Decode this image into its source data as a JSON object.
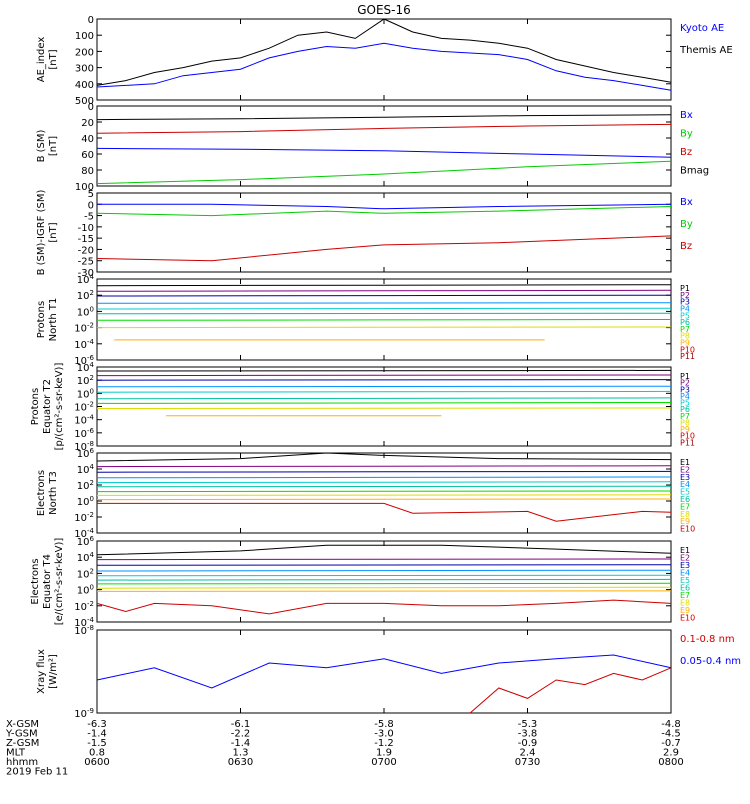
{
  "title": "GOES-16",
  "colors": {
    "black": "#000000",
    "blue": "#0000ff",
    "green": "#00cc00",
    "red": "#cc0000",
    "darkred": "#990000",
    "purple": "#800080",
    "navy": "#0000aa",
    "dodger": "#0090ff",
    "cyan": "#00cccc",
    "teal": "#00c0a0",
    "lime": "#00dd00",
    "yellow": "#dddd00",
    "orange": "#ffb000"
  },
  "chart_data": [
    {
      "type": "line",
      "ylabel": [
        "AE_index",
        "[nT]"
      ],
      "ylim": [
        0,
        500
      ],
      "yticks": [
        "0",
        "100",
        "200",
        "300",
        "400",
        "500"
      ],
      "series": [
        {
          "name": "Kyoto AE",
          "color": "blue",
          "x": [
            0,
            0.05,
            0.1,
            0.15,
            0.2,
            0.25,
            0.3,
            0.35,
            0.4,
            0.45,
            0.5,
            0.55,
            0.6,
            0.65,
            0.7,
            0.75,
            0.8,
            0.85,
            0.9,
            0.95,
            1
          ],
          "values": [
            80,
            90,
            100,
            150,
            170,
            190,
            260,
            300,
            330,
            320,
            350,
            320,
            300,
            290,
            280,
            250,
            180,
            140,
            120,
            90,
            60
          ]
        },
        {
          "name": "Themis AE",
          "color": "black",
          "x": [
            0,
            0.05,
            0.1,
            0.15,
            0.2,
            0.25,
            0.3,
            0.35,
            0.4,
            0.45,
            0.5,
            0.55,
            0.6,
            0.65,
            0.7,
            0.75,
            0.8,
            0.85,
            0.9,
            0.95,
            1
          ],
          "values": [
            90,
            120,
            170,
            200,
            240,
            260,
            320,
            400,
            420,
            380,
            500,
            420,
            380,
            370,
            350,
            320,
            250,
            210,
            170,
            140,
            110
          ]
        }
      ]
    },
    {
      "type": "line",
      "ylabel": [
        "B (SM)",
        "[nT]"
      ],
      "ylim": [
        0,
        100
      ],
      "yticks": [
        "0",
        "20",
        "40",
        "60",
        "80",
        "100"
      ],
      "series": [
        {
          "name": "Bx",
          "color": "blue",
          "x": [
            0,
            0.25,
            0.5,
            0.75,
            1
          ],
          "values": [
            47,
            46,
            44,
            40,
            36
          ]
        },
        {
          "name": "By",
          "color": "green",
          "x": [
            0,
            0.25,
            0.5,
            0.75,
            1
          ],
          "values": [
            3,
            8,
            15,
            24,
            31
          ]
        },
        {
          "name": "Bz",
          "color": "red",
          "x": [
            0,
            0.25,
            0.5,
            0.75,
            1
          ],
          "values": [
            66,
            68,
            72,
            75,
            77
          ]
        },
        {
          "name": "Bmag",
          "color": "black",
          "x": [
            0,
            0.25,
            0.5,
            0.75,
            1
          ],
          "values": [
            83,
            84,
            86,
            88,
            89
          ]
        }
      ]
    },
    {
      "type": "line",
      "ylabel": [
        "B (SM)-IGRF (SM)",
        "[nT]"
      ],
      "ylim": [
        -30,
        5
      ],
      "yticks": [
        "5",
        "0",
        "-5",
        "-10",
        "-15",
        "-20",
        "-25",
        "-30"
      ],
      "series": [
        {
          "name": "Bx",
          "color": "blue",
          "x": [
            0,
            0.2,
            0.4,
            0.5,
            0.7,
            1
          ],
          "values": [
            0,
            0,
            -1,
            -2,
            -1,
            0
          ]
        },
        {
          "name": "By",
          "color": "green",
          "x": [
            0,
            0.2,
            0.4,
            0.5,
            0.7,
            1
          ],
          "values": [
            -4,
            -5,
            -3,
            -4,
            -3,
            -1
          ]
        },
        {
          "name": "Bz",
          "color": "red",
          "x": [
            0,
            0.2,
            0.4,
            0.5,
            0.7,
            1
          ],
          "values": [
            -24,
            -25,
            -20,
            -18,
            -17,
            -14
          ]
        }
      ]
    },
    {
      "type": "line",
      "ylabel": [
        "Protons",
        "North T1"
      ],
      "log": true,
      "ylim": [
        1e-06,
        10000.0
      ],
      "yticks": [
        "10^4",
        "10^2",
        "10^0",
        "10^-2",
        "10^-4",
        "10^-6"
      ],
      "series": [
        {
          "name": "P1",
          "color": "black",
          "x": [
            0,
            1
          ],
          "values": [
            1500,
            2000
          ]
        },
        {
          "name": "P2",
          "color": "purple",
          "x": [
            0,
            1
          ],
          "values": [
            300,
            400
          ]
        },
        {
          "name": "P3",
          "color": "navy",
          "x": [
            0,
            1
          ],
          "values": [
            80,
            100
          ]
        },
        {
          "name": "P4",
          "color": "dodger",
          "x": [
            0,
            1
          ],
          "values": [
            10,
            12
          ]
        },
        {
          "name": "P5",
          "color": "cyan",
          "x": [
            0,
            1
          ],
          "values": [
            2,
            2.5
          ]
        },
        {
          "name": "P6",
          "color": "teal",
          "x": [
            0,
            1
          ],
          "values": [
            0.5,
            0.6
          ]
        },
        {
          "name": "P7",
          "color": "lime",
          "x": [
            0,
            1
          ],
          "values": [
            0.08,
            0.1
          ]
        },
        {
          "name": "P8",
          "color": "yellow",
          "x": [
            0,
            1
          ],
          "values": [
            0.01,
            0.012
          ]
        },
        {
          "name": "P9",
          "color": "orange",
          "x": [
            0.03,
            0.08,
            0.3,
            0.35,
            0.7,
            0.78
          ],
          "values": [
            0.0003,
            0.0003,
            0.0003,
            0.0003,
            0.0003,
            0.0003
          ]
        },
        {
          "name": "P10",
          "color": "red",
          "x": [],
          "values": []
        },
        {
          "name": "P11",
          "color": "darkred",
          "x": [],
          "values": []
        }
      ]
    },
    {
      "type": "line",
      "ylabel": [
        "Protons",
        "Equator T2",
        "[p/(cm²-s-sr-keV)]"
      ],
      "log": true,
      "ylim": [
        1e-08,
        10000.0
      ],
      "yticks": [
        "10^4",
        "10^2",
        "10^0",
        "10^-2",
        "10^-4",
        "10^-6",
        "10^-8"
      ],
      "series": [
        {
          "name": "P1",
          "color": "black",
          "x": [
            0,
            1
          ],
          "values": [
            2500,
            3000
          ]
        },
        {
          "name": "P2",
          "color": "purple",
          "x": [
            0,
            1
          ],
          "values": [
            500,
            600
          ]
        },
        {
          "name": "P3",
          "color": "navy",
          "x": [
            0,
            1
          ],
          "values": [
            100,
            120
          ]
        },
        {
          "name": "P4",
          "color": "dodger",
          "x": [
            0,
            1
          ],
          "values": [
            10,
            12
          ]
        },
        {
          "name": "P5",
          "color": "cyan",
          "x": [
            0,
            1
          ],
          "values": [
            1.5,
            2
          ]
        },
        {
          "name": "P6",
          "color": "teal",
          "x": [
            0,
            1
          ],
          "values": [
            0.15,
            0.2
          ]
        },
        {
          "name": "P7",
          "color": "lime",
          "x": [
            0,
            1
          ],
          "values": [
            0.03,
            0.04
          ]
        },
        {
          "name": "P8",
          "color": "yellow",
          "x": [
            0,
            1
          ],
          "values": [
            0.005,
            0.006
          ]
        },
        {
          "name": "P9",
          "color": "orange",
          "x": [
            0.12,
            0.17,
            0.42,
            0.6
          ],
          "values": [
            0.0004,
            0.0004,
            0.0004,
            0.0004
          ]
        },
        {
          "name": "P10",
          "color": "red",
          "x": [],
          "values": []
        },
        {
          "name": "P11",
          "color": "darkred",
          "x": [],
          "values": []
        }
      ]
    },
    {
      "type": "line",
      "ylabel": [
        "Electrons",
        "North T3"
      ],
      "log": true,
      "ylim": [
        0.0001,
        1000000.0
      ],
      "yticks": [
        "10^6",
        "10^4",
        "10^2",
        "10^0",
        "10^-2",
        "10^-4"
      ],
      "series": [
        {
          "name": "E1",
          "color": "black",
          "x": [
            0,
            0.25,
            0.4,
            0.5,
            0.7,
            1
          ],
          "values": [
            100000,
            200000,
            1000000,
            500000,
            200000,
            150000
          ]
        },
        {
          "name": "E2",
          "color": "purple",
          "x": [
            0,
            1
          ],
          "values": [
            20000,
            25000
          ]
        },
        {
          "name": "E3",
          "color": "navy",
          "x": [
            0,
            1
          ],
          "values": [
            4000,
            5000
          ]
        },
        {
          "name": "E4",
          "color": "dodger",
          "x": [
            0,
            1
          ],
          "values": [
            800,
            1000
          ]
        },
        {
          "name": "E5",
          "color": "cyan",
          "x": [
            0,
            1
          ],
          "values": [
            200,
            250
          ]
        },
        {
          "name": "E6",
          "color": "teal",
          "x": [
            0,
            1
          ],
          "values": [
            60,
            70
          ]
        },
        {
          "name": "E7",
          "color": "lime",
          "x": [
            0,
            1
          ],
          "values": [
            15,
            18
          ]
        },
        {
          "name": "E8",
          "color": "yellow",
          "x": [
            0,
            1
          ],
          "values": [
            5,
            6
          ]
        },
        {
          "name": "E9",
          "color": "orange",
          "x": [
            0,
            1
          ],
          "values": [
            1.5,
            1.8
          ]
        },
        {
          "name": "E10",
          "color": "red",
          "x": [
            0,
            0.5,
            0.55,
            0.75,
            0.8,
            0.9,
            0.95,
            1
          ],
          "values": [
            0.5,
            0.5,
            0.03,
            0.05,
            0.003,
            0.02,
            0.05,
            0.04
          ]
        }
      ]
    },
    {
      "type": "line",
      "ylabel": [
        "Electrons",
        "Equator T4",
        "[e/(cm²-s-sr-keV)]"
      ],
      "log": true,
      "ylim": [
        0.0001,
        1000000.0
      ],
      "yticks": [
        "10^6",
        "10^4",
        "10^2",
        "10^0",
        "10^-2",
        "10^-4"
      ],
      "series": [
        {
          "name": "E1",
          "color": "black",
          "x": [
            0,
            0.25,
            0.4,
            0.6,
            0.8,
            1
          ],
          "values": [
            20000,
            60000,
            300000,
            300000,
            100000,
            30000
          ]
        },
        {
          "name": "E2",
          "color": "purple",
          "x": [
            0,
            1
          ],
          "values": [
            5000,
            6000
          ]
        },
        {
          "name": "E3",
          "color": "navy",
          "x": [
            0,
            1
          ],
          "values": [
            1000,
            1200
          ]
        },
        {
          "name": "E4",
          "color": "dodger",
          "x": [
            0,
            1
          ],
          "values": [
            200,
            250
          ]
        },
        {
          "name": "E5",
          "color": "cyan",
          "x": [
            0,
            1
          ],
          "values": [
            50,
            60
          ]
        },
        {
          "name": "E6",
          "color": "teal",
          "x": [
            0,
            1
          ],
          "values": [
            15,
            18
          ]
        },
        {
          "name": "E7",
          "color": "lime",
          "x": [
            0,
            1
          ],
          "values": [
            5,
            6
          ]
        },
        {
          "name": "E8",
          "color": "yellow",
          "x": [
            0,
            1
          ],
          "values": [
            1.5,
            2
          ]
        },
        {
          "name": "E9",
          "color": "orange",
          "x": [
            0,
            1
          ],
          "values": [
            0.6,
            0.7
          ]
        },
        {
          "name": "E10",
          "color": "red",
          "x": [
            0,
            0.05,
            0.1,
            0.2,
            0.3,
            0.4,
            0.5,
            0.6,
            0.7,
            0.8,
            0.9,
            1
          ],
          "values": [
            0.02,
            0.002,
            0.02,
            0.01,
            0.001,
            0.02,
            0.02,
            0.01,
            0.01,
            0.02,
            0.05,
            0.02
          ]
        }
      ]
    },
    {
      "type": "line",
      "ylabel": [
        "Xray flux",
        "[W/m²]"
      ],
      "log": true,
      "ylim": [
        1e-09,
        1e-08
      ],
      "yticks": [
        "10^-8",
        "10^-9"
      ],
      "series": [
        {
          "name": "0.1-0.8 nm",
          "color": "red",
          "x": [
            0.65,
            0.7,
            0.75,
            0.8,
            0.85,
            0.9,
            0.95,
            1
          ],
          "values": [
            1e-09,
            2e-09,
            1.5e-09,
            2.5e-09,
            2.2e-09,
            3e-09,
            2.5e-09,
            3.5e-09
          ]
        },
        {
          "name": "0.05-0.4 nm",
          "color": "blue",
          "x": [
            0,
            0.1,
            0.2,
            0.3,
            0.4,
            0.5,
            0.6,
            0.7,
            0.8,
            0.9,
            1
          ],
          "values": [
            2.5e-09,
            3.5e-09,
            2e-09,
            4e-09,
            3.5e-09,
            4.5e-09,
            3e-09,
            4e-09,
            4.5e-09,
            5e-09,
            3.5e-09
          ]
        }
      ]
    }
  ],
  "axis": {
    "rows": [
      {
        "label": "X-GSM",
        "values": [
          "-6.3",
          "-6.1",
          "-5.8",
          "-5.3",
          "-4.8"
        ]
      },
      {
        "label": "Y-GSM",
        "values": [
          "-1.4",
          "-2.2",
          "-3.0",
          "-3.8",
          "-4.5"
        ]
      },
      {
        "label": "Z-GSM",
        "values": [
          "-1.5",
          "-1.4",
          "-1.2",
          "-0.9",
          "-0.7"
        ]
      },
      {
        "label": "MLT",
        "values": [
          "0.8",
          "1.3",
          "1.9",
          "2.4",
          "2.9"
        ]
      },
      {
        "label": "hhmm",
        "values": [
          "0600",
          "0630",
          "0700",
          "0730",
          "0800"
        ]
      }
    ],
    "date": "2019 Feb 11"
  }
}
